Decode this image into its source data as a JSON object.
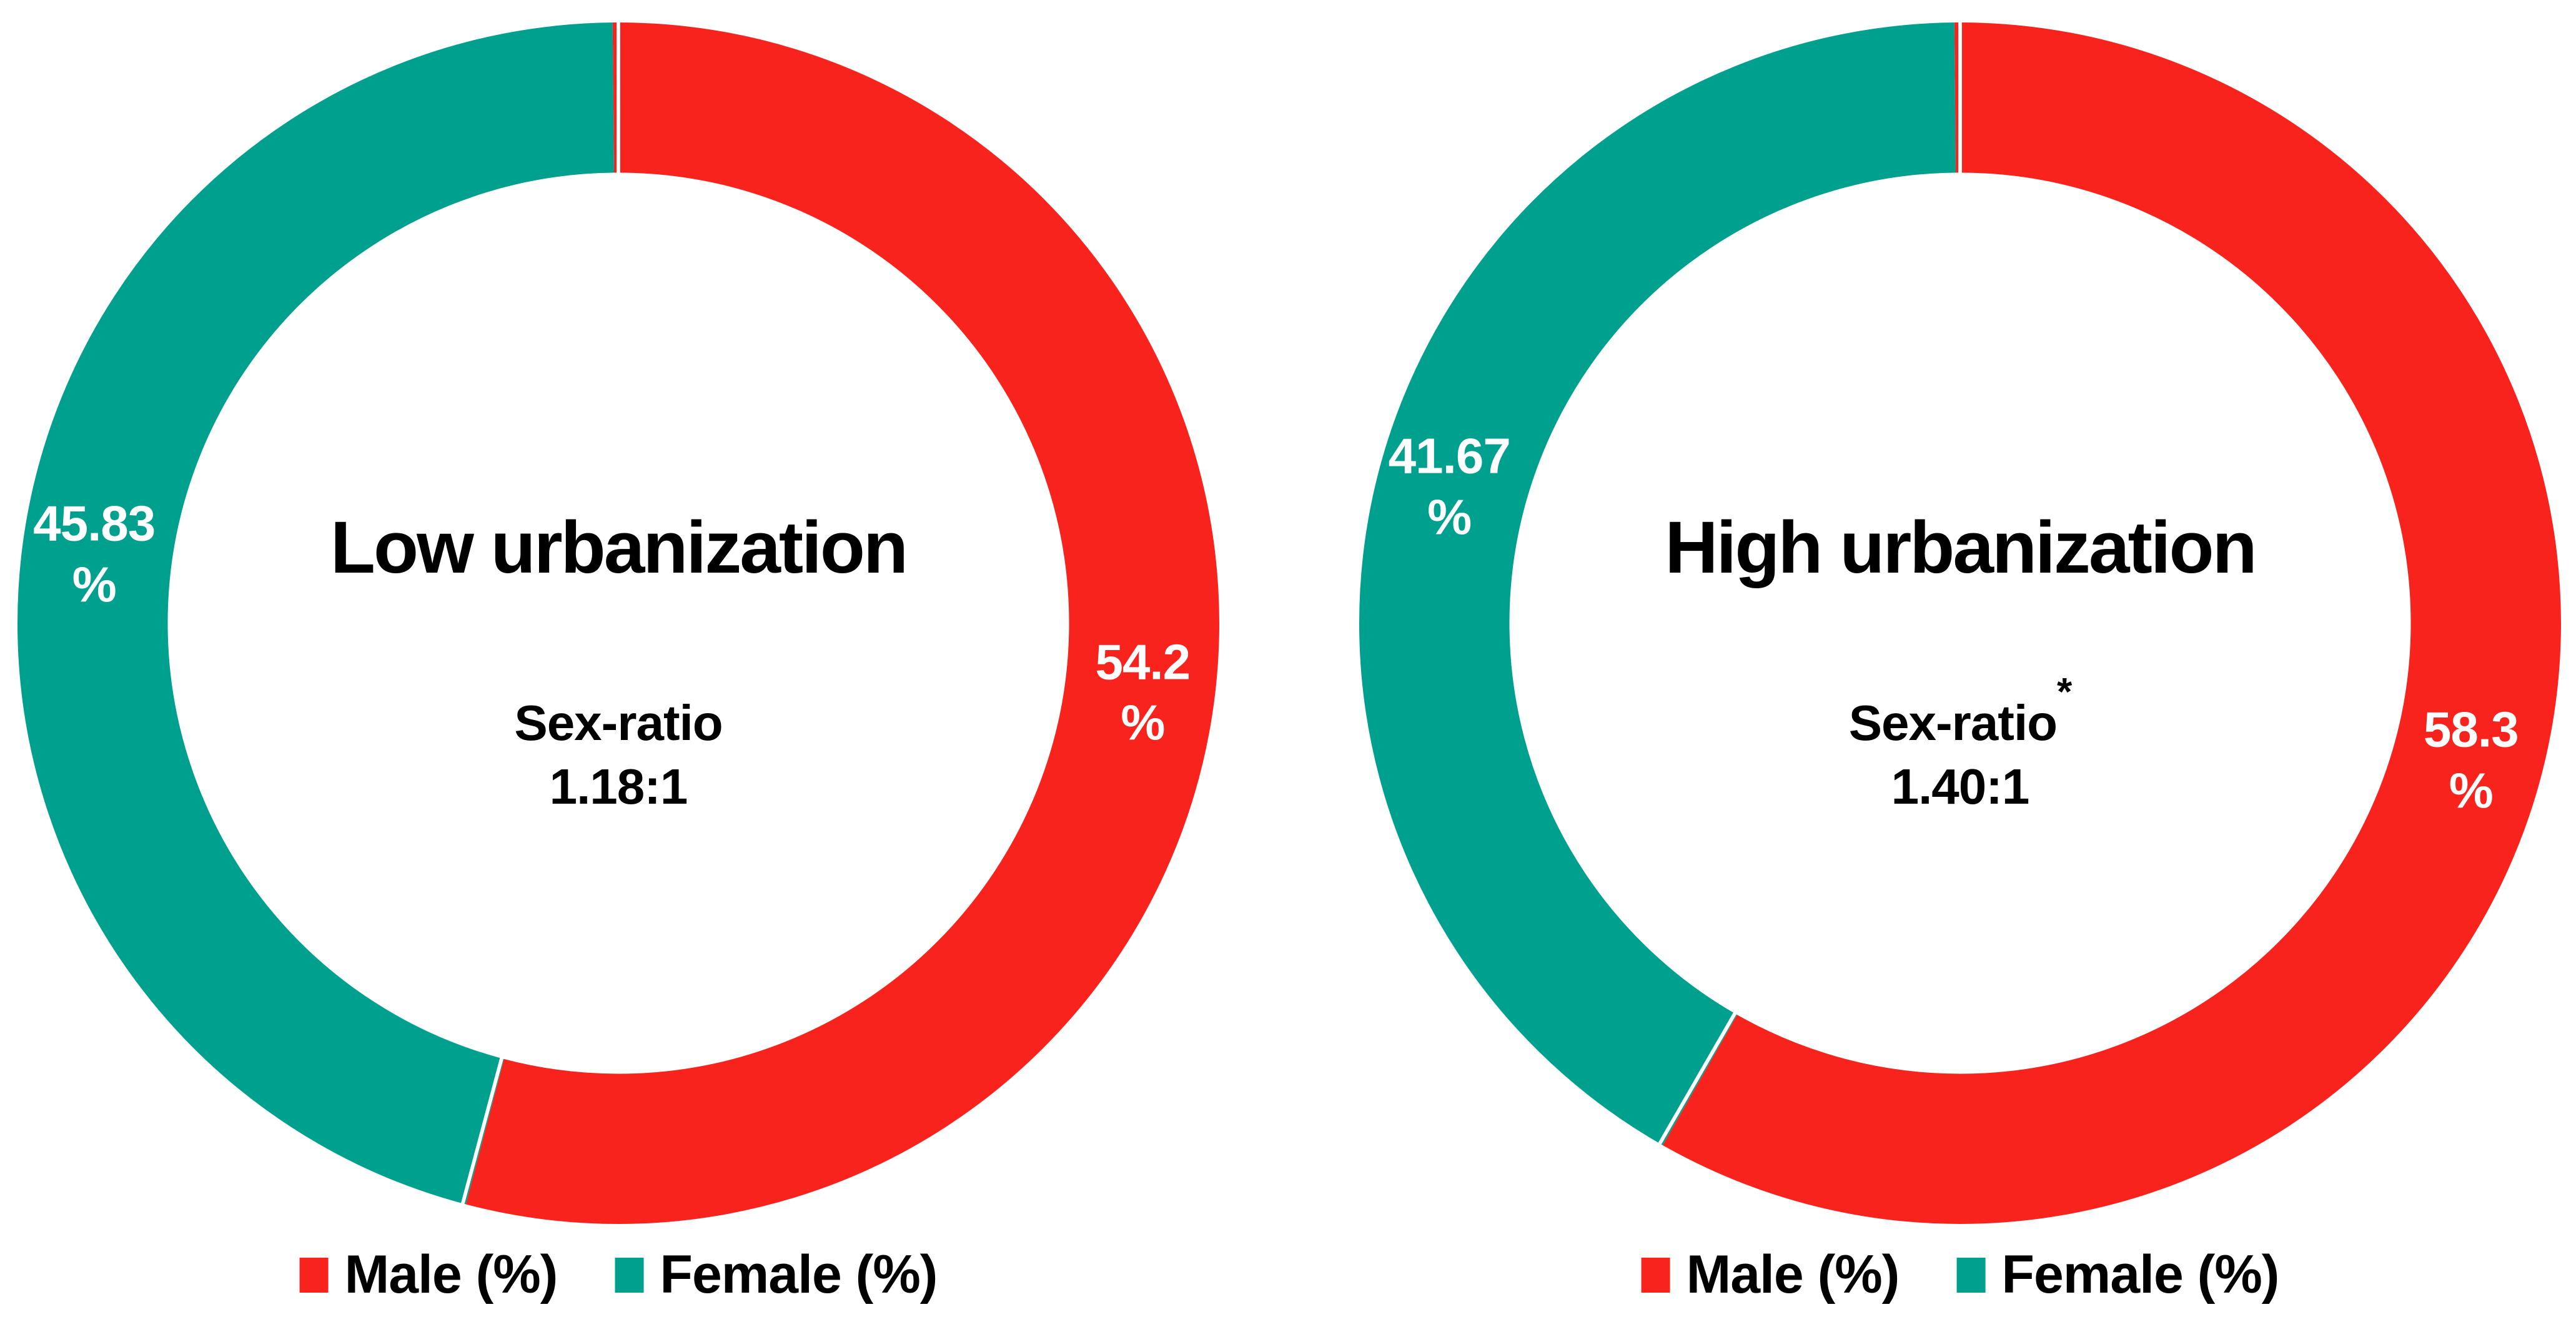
{
  "page": {
    "background": "#ffffff"
  },
  "colors": {
    "male_red": "#F9231E",
    "female_teal": "#00A08F",
    "slice_label_text": "#ffffff",
    "center_text": "#000000",
    "separator": "#ffffff"
  },
  "legend": {
    "male_label": "Male (%)",
    "female_label": "Female (%)"
  },
  "charts": [
    {
      "id": "low",
      "title": "Low urbanization",
      "center_line1": "Sex-ratio",
      "center_superscript": "",
      "center_line2": "1.18:1",
      "slices": [
        {
          "series": "Male (%)",
          "value": 54.17,
          "display": "54.2\n%"
        },
        {
          "series": "Female (%)",
          "value": 45.83,
          "display": "45.83\n%"
        }
      ]
    },
    {
      "id": "high",
      "title": "High urbanization",
      "center_line1": "Sex-ratio",
      "center_superscript": "*",
      "center_line2": "1.40:1",
      "slices": [
        {
          "series": "Male (%)",
          "value": 58.33,
          "display": "58.3\n%"
        },
        {
          "series": "Female (%)",
          "value": 41.67,
          "display": "41.67\n%"
        }
      ]
    }
  ],
  "chart_data": [
    {
      "type": "pie",
      "subtype": "donut",
      "title": "Low urbanization",
      "categories": [
        "Male (%)",
        "Female (%)"
      ],
      "values": [
        54.2,
        45.83
      ],
      "displayed_labels": [
        "54.2 %",
        "45.83 %"
      ],
      "annotations": [
        "Sex-ratio",
        "1.18:1"
      ],
      "colors": [
        "#F9231E",
        "#00A08F"
      ],
      "hole_ratio": 0.75,
      "start_angle_deg": 0,
      "direction": "clockwise",
      "legend_position": "bottom",
      "legend_entries": [
        "Male (%)",
        "Female (%)"
      ]
    },
    {
      "type": "pie",
      "subtype": "donut",
      "title": "High urbanization",
      "categories": [
        "Male (%)",
        "Female (%)"
      ],
      "values": [
        58.3,
        41.67
      ],
      "displayed_labels": [
        "58.3 %",
        "41.67 %"
      ],
      "annotations": [
        "Sex-ratio*",
        "1.40:1"
      ],
      "colors": [
        "#F9231E",
        "#00A08F"
      ],
      "hole_ratio": 0.75,
      "start_angle_deg": 0,
      "direction": "clockwise",
      "legend_position": "bottom",
      "legend_entries": [
        "Male (%)",
        "Female (%)"
      ]
    }
  ]
}
